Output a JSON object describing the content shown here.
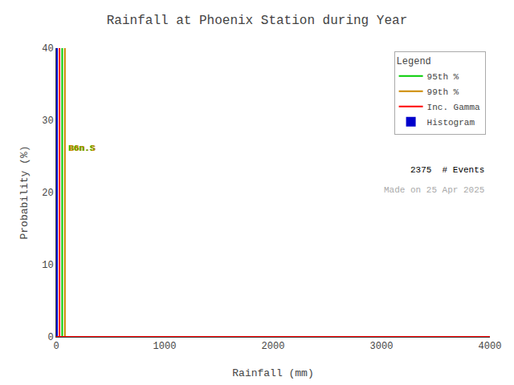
{
  "chart_data": {
    "type": "histogram",
    "title": "Rainfall at Phoenix Station during Year",
    "xlabel": "Rainfall (mm)",
    "ylabel": "Probability (%)",
    "xlim": [
      0,
      4000
    ],
    "ylim": [
      0,
      40
    ],
    "xticks": [
      0,
      1000,
      2000,
      3000,
      4000
    ],
    "yticks": [
      0,
      10,
      20,
      30,
      40
    ],
    "grid": false,
    "legend": "upper right",
    "legend_title": "Legend",
    "series": [
      {
        "name": "95th %",
        "type": "vline",
        "color": "#00cc00",
        "x": 55
      },
      {
        "name": "99th %",
        "type": "vline",
        "color": "#cc8800",
        "x": 80
      },
      {
        "name": "Inc. Gamma",
        "type": "vline",
        "color": "#ff0000",
        "x": 30
      },
      {
        "name": "Histogram",
        "type": "histogram",
        "color": "#0000cc",
        "bins": [
          0,
          8
        ],
        "values": [
          40
        ]
      },
      {
        "type": "line",
        "color": "#ff0000",
        "x": [
          0,
          4000
        ],
        "values": [
          0.0,
          0.0
        ]
      }
    ],
    "annotations": [
      {
        "text": "B6n.S",
        "x": 95,
        "y": 25.2,
        "color": "#00cc00"
      },
      {
        "text": "B6n.S",
        "x": 100,
        "y": 25.2,
        "color": "#cc8800"
      }
    ],
    "notes": [
      {
        "text": "2375  # Events",
        "color": "#000000"
      },
      {
        "text": "Made on 25 Apr 2025",
        "color": "#aaaaaa"
      }
    ]
  }
}
